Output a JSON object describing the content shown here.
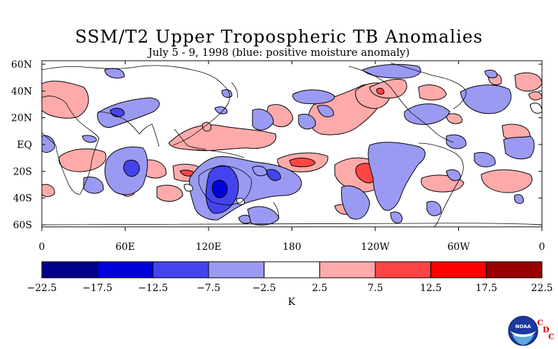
{
  "map": {
    "title": "SSM/T2 Upper Tropospheric TB Anomalies",
    "subtitle": "July 5 - 9, 1998 (blue: positive moisture anomaly)",
    "lat_labels": [
      "60N",
      "40N",
      "20N",
      "EQ",
      "20S",
      "40S",
      "60S"
    ],
    "lon_labels": [
      "0",
      "60E",
      "120E",
      "180",
      "120W",
      "60W",
      "0"
    ],
    "colorbar": {
      "unit": "K",
      "tick_labels": [
        "-22.5",
        "-17.5",
        "-12.5",
        "-7.5",
        "-2.5",
        "2.5",
        "7.5",
        "12.5",
        "17.5",
        "22.5"
      ],
      "colors": [
        "#00008b",
        "#0000dd",
        "#4444ee",
        "#9a9af2",
        "#ffffff",
        "#ffaaaa",
        "#ff4444",
        "#ff0000",
        "#990000"
      ]
    }
  },
  "footer": {
    "logo_text": "NOAA",
    "org_letters": [
      "C",
      "D",
      "C"
    ]
  }
}
